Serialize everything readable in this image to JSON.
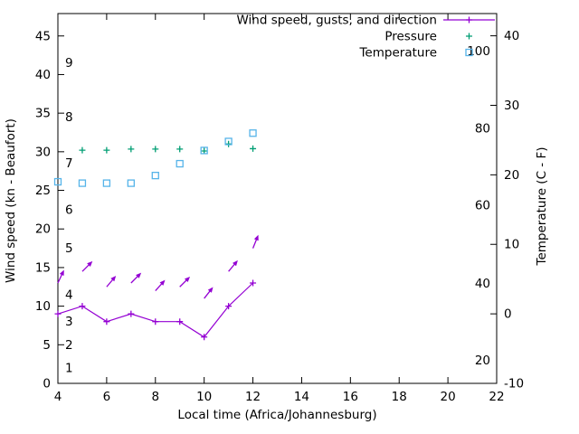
{
  "chart_data": {
    "type": "line",
    "title": "",
    "xlabel": "Local time (Africa/Johannesburg)",
    "ylabel_left": "Wind speed (kn - Beaufort)",
    "ylabel_right": "Temperature (C - F)",
    "grid": false,
    "xlim": [
      4,
      22
    ],
    "x_ticks": [
      4,
      6,
      8,
      10,
      12,
      14,
      16,
      18,
      20,
      22
    ],
    "ylim_left": [
      0,
      47.9
    ],
    "y_ticks_left": [
      0,
      5,
      10,
      15,
      20,
      25,
      30,
      35,
      40,
      45
    ],
    "ylim_right": [
      -10,
      43.2
    ],
    "y_ticks_right": [
      -10,
      0,
      10,
      20,
      30,
      40
    ],
    "beaufort_labels": [
      {
        "label": "1",
        "kn": 2
      },
      {
        "label": "2",
        "kn": 5
      },
      {
        "label": "3",
        "kn": 8
      },
      {
        "label": "4",
        "kn": 11.5
      },
      {
        "label": "5",
        "kn": 17.5
      },
      {
        "label": "6",
        "kn": 22.5
      },
      {
        "label": "7",
        "kn": 28.5
      },
      {
        "label": "8",
        "kn": 34.5
      },
      {
        "label": "9",
        "kn": 41.5
      }
    ],
    "fahrenheit_labels": [
      {
        "label": "20",
        "c": -6.7
      },
      {
        "label": "40",
        "c": 4.4
      },
      {
        "label": "60",
        "c": 15.6
      },
      {
        "label": "80",
        "c": 26.7
      },
      {
        "label": "100",
        "c": 37.8
      }
    ],
    "series": [
      {
        "name": "Wind speed, gusts, and direction",
        "axis": "left",
        "style": "linespoints-plus",
        "color": "#9400d3",
        "x": [
          4,
          5,
          6,
          7,
          8,
          9,
          10,
          11,
          12
        ],
        "y": [
          9,
          10,
          8,
          9,
          8,
          8,
          6,
          10,
          13
        ]
      },
      {
        "name": "Wind gust direction arrows",
        "axis": "left",
        "style": "vectors",
        "color": "#9400d3",
        "x": [
          4,
          5,
          6,
          7,
          8,
          9,
          10,
          11,
          12
        ],
        "y": [
          13,
          14.5,
          12.5,
          13,
          12,
          12.5,
          11,
          14.5,
          17.5
        ],
        "toward_deg": [
          25,
          45,
          40,
          45,
          42,
          45,
          38,
          40,
          22
        ]
      },
      {
        "name": "Pressure",
        "axis": "left",
        "style": "points-plus",
        "color": "#009e73",
        "x": [
          5,
          6,
          7,
          8,
          9,
          10,
          11,
          12
        ],
        "y": [
          30.2,
          30.2,
          30.35,
          30.35,
          30.35,
          30.1,
          31.0,
          30.4
        ]
      },
      {
        "name": "Temperature",
        "axis": "right",
        "style": "points-square",
        "color": "#56b4e9",
        "x": [
          4,
          5,
          6,
          7,
          8,
          9,
          10,
          11,
          12
        ],
        "y": [
          19,
          18.8,
          18.8,
          18.8,
          19.9,
          21.6,
          23.5,
          24.8,
          26
        ]
      }
    ],
    "legend": {
      "position": "top-right-inside",
      "entries": [
        {
          "label": "Wind speed, gusts, and direction",
          "series": 0
        },
        {
          "label": "Pressure",
          "series": 2
        },
        {
          "label": "Temperature",
          "series": 3
        }
      ]
    },
    "colors": {
      "axis": "#000000",
      "background": "#ffffff",
      "wind": "#9400d3",
      "pressure": "#009e73",
      "temperature": "#56b4e9"
    }
  }
}
